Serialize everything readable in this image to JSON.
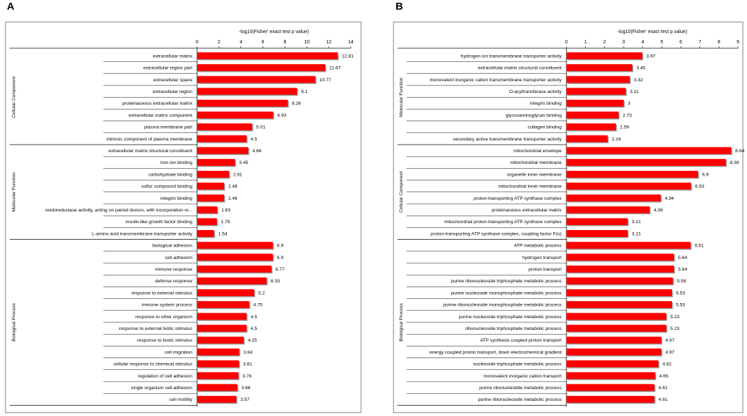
{
  "colors": {
    "bar": "#ff0000",
    "bar_shadow": "#9a9a9a",
    "frame": "#7f7f7f",
    "grid": "#000000"
  },
  "chart_data": [
    {
      "type": "bar",
      "orientation": "horizontal",
      "panel": "A",
      "xlabel": "-log10(Fisher' exact test p value)",
      "xlim": [
        0,
        14
      ],
      "xticks": [
        "0",
        "2",
        "4",
        "6",
        "8",
        "10",
        "12",
        "14"
      ],
      "groups": [
        {
          "name": "Cellular Component",
          "categories": [
            "extracellular matrix",
            "extracellular region part",
            "extracellular space",
            "extracellular region",
            "proteinaceous extracellular matrix",
            "extracellular matrix component",
            "plasma membrane part",
            "intrinsic component of plasma membrane"
          ],
          "values": [
            12.81,
            11.67,
            10.77,
            9.1,
            8.26,
            6.93,
            5.01,
            4.5
          ],
          "labels": [
            "12.81",
            "11.67",
            "10.77",
            "9.1",
            "8.26",
            "6.93",
            "5.01",
            "4.5"
          ]
        },
        {
          "name": "Molecular Function",
          "categories": [
            "extracellular matrix structural constituent",
            "iron ion binding",
            "carbohydrate binding",
            "sulfur compound binding",
            "integrin binding",
            "oxidoreductase activity, acting on paired donors, with incorporation or...",
            "insulin-like growth factor binding",
            "L-amino acid transmembrane transporter activity"
          ],
          "values": [
            4.66,
            3.45,
            2.91,
            2.46,
            2.46,
            1.83,
            1.79,
            1.54
          ],
          "labels": [
            "4.66",
            "3.45",
            "2.91",
            "2.46",
            "2.46",
            "1.83",
            "1.79",
            "1.54"
          ]
        },
        {
          "name": "Biological Process",
          "categories": [
            "biological adhesion",
            "cell adhesion",
            "immune response",
            "defense response",
            "response to external stimulus",
            "immune system process",
            "response to other organism",
            "response to external biotic stimulus",
            "response to biotic stimulus",
            "cell migration",
            "cellular response to chemical stimulus",
            "regulation of cell adhesion",
            "single organism cell adhesion",
            "cell motility"
          ],
          "values": [
            6.9,
            6.9,
            6.77,
            6.33,
            5.2,
            4.75,
            4.5,
            4.5,
            4.25,
            3.84,
            3.81,
            3.76,
            3.66,
            3.57
          ],
          "labels": [
            "6.9",
            "6.9",
            "6.77",
            "6.33",
            "5.2",
            "4.75",
            "4.5",
            "4.5",
            "4.25",
            "3.84",
            "3.81",
            "3.76",
            "3.66",
            "3.57"
          ]
        }
      ]
    },
    {
      "type": "bar",
      "orientation": "horizontal",
      "panel": "B",
      "xlabel": "-log10(Fisher' exact test p value)",
      "xlim": [
        0,
        9
      ],
      "xticks": [
        "0",
        "1",
        "2",
        "3",
        "4",
        "5",
        "6",
        "7",
        "8",
        "9"
      ],
      "groups": [
        {
          "name": "Molecular Function",
          "categories": [
            "hydrogen ion transmembrane transporter activity",
            "extracellular matrix structural constituent",
            "monovalent inorganic cation transmembrane transporter activity",
            "O-acyltransferase activity",
            "integrin binding",
            "glycosaminoglycan binding",
            "collagen binding",
            "secondary active transmembrane transporter activity"
          ],
          "values": [
            3.97,
            3.45,
            3.32,
            3.11,
            3,
            2.73,
            2.59,
            2.16
          ],
          "labels": [
            "3.97",
            "3.45",
            "3.32",
            "3.11",
            "3",
            "2.73",
            "2.59",
            "2.16"
          ]
        },
        {
          "name": "Cellular Component",
          "categories": [
            "mitochondrial envelope",
            "mitochondrial membrane",
            "organelle inner membrane",
            "mitochondrial inner membrane",
            "proton-transporting ATP synthase complex",
            "proteinaceous extracellular matrix",
            "mitochondrial proton-transporting ATP synthase complex",
            "proton-transporting ATP synthase complex, coupling factor F(o)"
          ],
          "values": [
            8.64,
            8.36,
            6.9,
            6.53,
            4.94,
            4.36,
            3.21,
            3.21
          ],
          "labels": [
            "8.64",
            "8.36",
            "6.9",
            "6.53",
            "4.94",
            "4.36",
            "3.21",
            "3.21"
          ]
        },
        {
          "name": "Biological Process",
          "categories": [
            "ATP metabolic process",
            "hydrogen transport",
            "proton transport",
            "purine ribonucleoside triphosphate metabolic process",
            "purine nucleoside monophosphate metabolic process",
            "purine ribonucleoside monophosphate metabolic process",
            "purine nucleoside triphosphate metabolic process",
            "ribonucleoside triphosphate metabolic process",
            "ATP synthesis coupled proton transport",
            "energy coupled proton transport, down electrochemical gradient",
            "nucleoside triphosphate metabolic process",
            "monovalent inorganic cation transport",
            "purine ribonucleotide metabolic process",
            "purine ribonucleoside metabolic process"
          ],
          "values": [
            6.51,
            5.64,
            5.64,
            5.58,
            5.53,
            5.53,
            5.23,
            5.23,
            4.97,
            4.97,
            4.82,
            4.65,
            4.61,
            4.61
          ],
          "labels": [
            "6.51",
            "5.64",
            "5.64",
            "5.58",
            "5.53",
            "5.53",
            "5.23",
            "5.23",
            "4.97",
            "4.97",
            "4.82",
            "4.65",
            "4.61",
            "4.61"
          ]
        }
      ]
    }
  ]
}
